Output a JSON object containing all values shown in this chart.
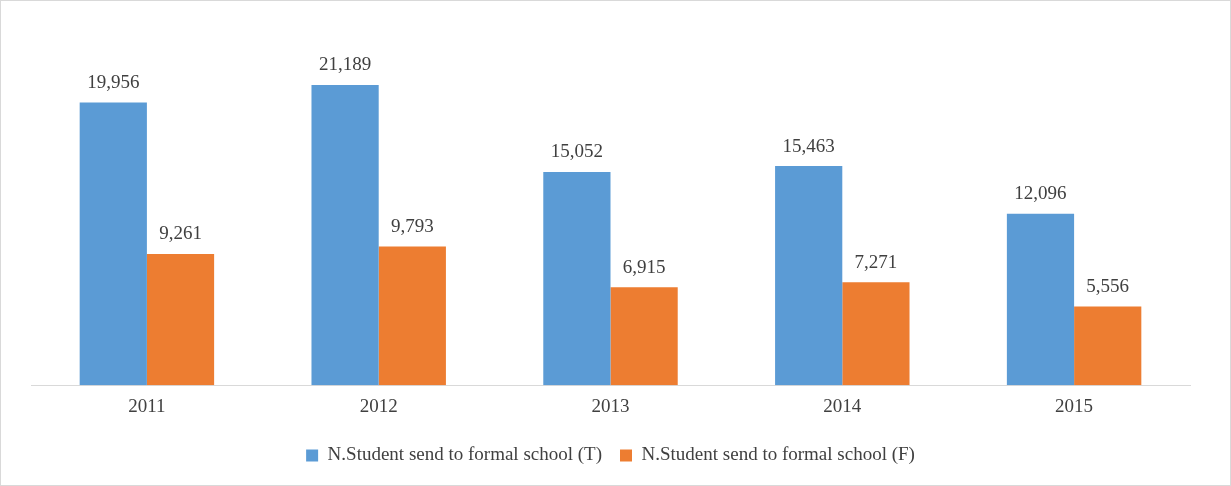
{
  "chart_data": {
    "type": "bar",
    "categories": [
      "2011",
      "2012",
      "2013",
      "2014",
      "2015"
    ],
    "series": [
      {
        "name": "N.Student send to formal school (T)",
        "color": "#5b9bd5",
        "values": [
          19956,
          21189,
          15052,
          15463,
          12096
        ],
        "value_labels": [
          "19,956",
          "21,189",
          "15,052",
          "15,463",
          "12,096"
        ]
      },
      {
        "name": "N.Student send to formal school (F)",
        "color": "#ed7d31",
        "values": [
          9261,
          9793,
          6915,
          7271,
          5556
        ],
        "value_labels": [
          "9,261",
          "9,793",
          "6,915",
          "7,271",
          "5,556"
        ]
      }
    ],
    "legend": "bottom"
  }
}
